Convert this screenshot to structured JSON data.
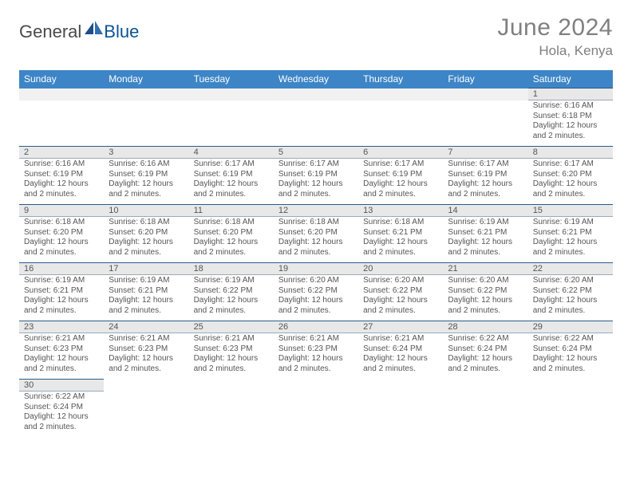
{
  "logo": {
    "general": "General",
    "blue": "Blue"
  },
  "title": "June 2024",
  "location": "Hola, Kenya",
  "colors": {
    "header_bg": "#3d85c6",
    "header_text": "#ffffff",
    "numrow_bg": "#e8e8e8",
    "numrow_border_top": "#2a5b8a",
    "body_text": "#555555",
    "title_text": "#808080",
    "logo_blue": "#0b5394"
  },
  "typography": {
    "title_fontsize": 30,
    "location_fontsize": 17,
    "dow_fontsize": 12,
    "daynum_fontsize": 11,
    "body_fontsize": 10
  },
  "calendar": {
    "type": "table",
    "daysOfWeek": [
      "Sunday",
      "Monday",
      "Tuesday",
      "Wednesday",
      "Thursday",
      "Friday",
      "Saturday"
    ],
    "weeks": [
      [
        null,
        null,
        null,
        null,
        null,
        null,
        {
          "n": "1",
          "sr": "Sunrise: 6:16 AM",
          "ss": "Sunset: 6:18 PM",
          "d1": "Daylight: 12 hours",
          "d2": "and 2 minutes."
        }
      ],
      [
        {
          "n": "2",
          "sr": "Sunrise: 6:16 AM",
          "ss": "Sunset: 6:19 PM",
          "d1": "Daylight: 12 hours",
          "d2": "and 2 minutes."
        },
        {
          "n": "3",
          "sr": "Sunrise: 6:16 AM",
          "ss": "Sunset: 6:19 PM",
          "d1": "Daylight: 12 hours",
          "d2": "and 2 minutes."
        },
        {
          "n": "4",
          "sr": "Sunrise: 6:17 AM",
          "ss": "Sunset: 6:19 PM",
          "d1": "Daylight: 12 hours",
          "d2": "and 2 minutes."
        },
        {
          "n": "5",
          "sr": "Sunrise: 6:17 AM",
          "ss": "Sunset: 6:19 PM",
          "d1": "Daylight: 12 hours",
          "d2": "and 2 minutes."
        },
        {
          "n": "6",
          "sr": "Sunrise: 6:17 AM",
          "ss": "Sunset: 6:19 PM",
          "d1": "Daylight: 12 hours",
          "d2": "and 2 minutes."
        },
        {
          "n": "7",
          "sr": "Sunrise: 6:17 AM",
          "ss": "Sunset: 6:19 PM",
          "d1": "Daylight: 12 hours",
          "d2": "and 2 minutes."
        },
        {
          "n": "8",
          "sr": "Sunrise: 6:17 AM",
          "ss": "Sunset: 6:20 PM",
          "d1": "Daylight: 12 hours",
          "d2": "and 2 minutes."
        }
      ],
      [
        {
          "n": "9",
          "sr": "Sunrise: 6:18 AM",
          "ss": "Sunset: 6:20 PM",
          "d1": "Daylight: 12 hours",
          "d2": "and 2 minutes."
        },
        {
          "n": "10",
          "sr": "Sunrise: 6:18 AM",
          "ss": "Sunset: 6:20 PM",
          "d1": "Daylight: 12 hours",
          "d2": "and 2 minutes."
        },
        {
          "n": "11",
          "sr": "Sunrise: 6:18 AM",
          "ss": "Sunset: 6:20 PM",
          "d1": "Daylight: 12 hours",
          "d2": "and 2 minutes."
        },
        {
          "n": "12",
          "sr": "Sunrise: 6:18 AM",
          "ss": "Sunset: 6:20 PM",
          "d1": "Daylight: 12 hours",
          "d2": "and 2 minutes."
        },
        {
          "n": "13",
          "sr": "Sunrise: 6:18 AM",
          "ss": "Sunset: 6:21 PM",
          "d1": "Daylight: 12 hours",
          "d2": "and 2 minutes."
        },
        {
          "n": "14",
          "sr": "Sunrise: 6:19 AM",
          "ss": "Sunset: 6:21 PM",
          "d1": "Daylight: 12 hours",
          "d2": "and 2 minutes."
        },
        {
          "n": "15",
          "sr": "Sunrise: 6:19 AM",
          "ss": "Sunset: 6:21 PM",
          "d1": "Daylight: 12 hours",
          "d2": "and 2 minutes."
        }
      ],
      [
        {
          "n": "16",
          "sr": "Sunrise: 6:19 AM",
          "ss": "Sunset: 6:21 PM",
          "d1": "Daylight: 12 hours",
          "d2": "and 2 minutes."
        },
        {
          "n": "17",
          "sr": "Sunrise: 6:19 AM",
          "ss": "Sunset: 6:21 PM",
          "d1": "Daylight: 12 hours",
          "d2": "and 2 minutes."
        },
        {
          "n": "18",
          "sr": "Sunrise: 6:19 AM",
          "ss": "Sunset: 6:22 PM",
          "d1": "Daylight: 12 hours",
          "d2": "and 2 minutes."
        },
        {
          "n": "19",
          "sr": "Sunrise: 6:20 AM",
          "ss": "Sunset: 6:22 PM",
          "d1": "Daylight: 12 hours",
          "d2": "and 2 minutes."
        },
        {
          "n": "20",
          "sr": "Sunrise: 6:20 AM",
          "ss": "Sunset: 6:22 PM",
          "d1": "Daylight: 12 hours",
          "d2": "and 2 minutes."
        },
        {
          "n": "21",
          "sr": "Sunrise: 6:20 AM",
          "ss": "Sunset: 6:22 PM",
          "d1": "Daylight: 12 hours",
          "d2": "and 2 minutes."
        },
        {
          "n": "22",
          "sr": "Sunrise: 6:20 AM",
          "ss": "Sunset: 6:22 PM",
          "d1": "Daylight: 12 hours",
          "d2": "and 2 minutes."
        }
      ],
      [
        {
          "n": "23",
          "sr": "Sunrise: 6:21 AM",
          "ss": "Sunset: 6:23 PM",
          "d1": "Daylight: 12 hours",
          "d2": "and 2 minutes."
        },
        {
          "n": "24",
          "sr": "Sunrise: 6:21 AM",
          "ss": "Sunset: 6:23 PM",
          "d1": "Daylight: 12 hours",
          "d2": "and 2 minutes."
        },
        {
          "n": "25",
          "sr": "Sunrise: 6:21 AM",
          "ss": "Sunset: 6:23 PM",
          "d1": "Daylight: 12 hours",
          "d2": "and 2 minutes."
        },
        {
          "n": "26",
          "sr": "Sunrise: 6:21 AM",
          "ss": "Sunset: 6:23 PM",
          "d1": "Daylight: 12 hours",
          "d2": "and 2 minutes."
        },
        {
          "n": "27",
          "sr": "Sunrise: 6:21 AM",
          "ss": "Sunset: 6:24 PM",
          "d1": "Daylight: 12 hours",
          "d2": "and 2 minutes."
        },
        {
          "n": "28",
          "sr": "Sunrise: 6:22 AM",
          "ss": "Sunset: 6:24 PM",
          "d1": "Daylight: 12 hours",
          "d2": "and 2 minutes."
        },
        {
          "n": "29",
          "sr": "Sunrise: 6:22 AM",
          "ss": "Sunset: 6:24 PM",
          "d1": "Daylight: 12 hours",
          "d2": "and 2 minutes."
        }
      ],
      [
        {
          "n": "30",
          "sr": "Sunrise: 6:22 AM",
          "ss": "Sunset: 6:24 PM",
          "d1": "Daylight: 12 hours",
          "d2": "and 2 minutes."
        },
        null,
        null,
        null,
        null,
        null,
        null
      ]
    ]
  }
}
